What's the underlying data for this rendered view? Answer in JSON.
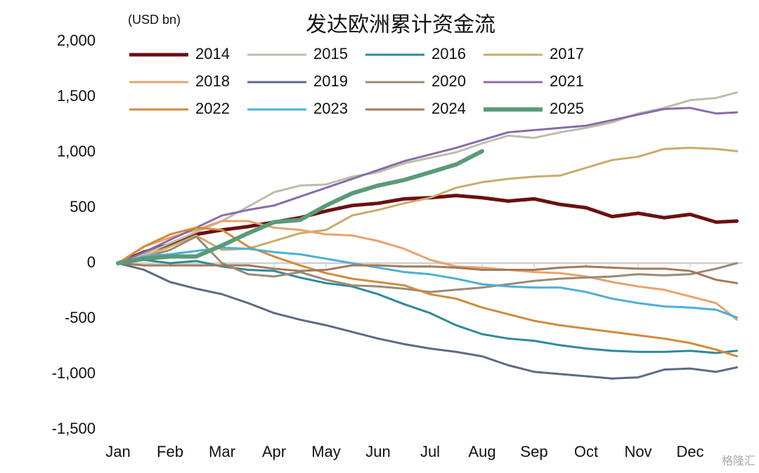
{
  "chart_data": {
    "type": "line",
    "title": "发达欧洲累计资金流",
    "unit_label": "(USD bn)",
    "watermark": "格隆汇",
    "x": [
      0,
      0.5,
      1,
      1.5,
      2,
      2.5,
      3,
      3.5,
      4,
      4.5,
      5,
      5.5,
      6,
      6.5,
      7,
      7.5,
      8,
      8.5,
      9,
      9.5,
      10,
      10.5,
      11,
      11.5,
      11.9
    ],
    "xlim": [
      0,
      12
    ],
    "xticks": [
      {
        "value": 0,
        "label": "Jan"
      },
      {
        "value": 1,
        "label": "Feb"
      },
      {
        "value": 2,
        "label": "Mar"
      },
      {
        "value": 3,
        "label": "Apr"
      },
      {
        "value": 4,
        "label": "May"
      },
      {
        "value": 5,
        "label": "Jun"
      },
      {
        "value": 6,
        "label": "Jul"
      },
      {
        "value": 7,
        "label": "Aug"
      },
      {
        "value": 8,
        "label": "Sep"
      },
      {
        "value": 9,
        "label": "Oct"
      },
      {
        "value": 10,
        "label": "Nov"
      },
      {
        "value": 11,
        "label": "Dec"
      }
    ],
    "ylim": [
      -1500,
      2000
    ],
    "yticks": [
      {
        "value": 2000,
        "label": "2,000"
      },
      {
        "value": 1500,
        "label": "1,500"
      },
      {
        "value": 1000,
        "label": "1,000"
      },
      500,
      0,
      -500,
      {
        "value": -1000,
        "label": "-1,000"
      },
      {
        "value": -1500,
        "label": "-1,500"
      }
    ],
    "series": [
      {
        "name": "2014",
        "color": "#6b0f12",
        "line_width": 5,
        "values": [
          0,
          100,
          170,
          260,
          300,
          330,
          370,
          410,
          470,
          520,
          540,
          580,
          590,
          610,
          590,
          560,
          580,
          530,
          500,
          420,
          450,
          410,
          440,
          370,
          380
        ]
      },
      {
        "name": "2015",
        "color": "#bdbdac",
        "line_width": 3,
        "values": [
          0,
          80,
          180,
          280,
          380,
          510,
          640,
          700,
          710,
          780,
          820,
          900,
          950,
          1000,
          1080,
          1150,
          1130,
          1180,
          1220,
          1270,
          1350,
          1400,
          1470,
          1490,
          1540
        ]
      },
      {
        "name": "2016",
        "color": "#2e8a98",
        "line_width": 3,
        "values": [
          0,
          30,
          0,
          20,
          -30,
          -60,
          -70,
          -130,
          -180,
          -210,
          -280,
          -370,
          -450,
          -560,
          -640,
          -680,
          -700,
          -740,
          -770,
          -790,
          -800,
          -800,
          -790,
          -810,
          -790
        ]
      },
      {
        "name": "2017",
        "color": "#c9ab6c",
        "line_width": 3,
        "values": [
          0,
          60,
          150,
          250,
          120,
          130,
          200,
          270,
          300,
          430,
          480,
          540,
          590,
          680,
          730,
          760,
          780,
          790,
          860,
          930,
          960,
          1030,
          1040,
          1030,
          1010
        ]
      },
      {
        "name": "2018",
        "color": "#e9a26c",
        "line_width": 3,
        "values": [
          0,
          150,
          230,
          300,
          380,
          380,
          320,
          300,
          260,
          250,
          200,
          130,
          30,
          -30,
          -40,
          -60,
          -80,
          -90,
          -120,
          -170,
          -210,
          -240,
          -300,
          -360,
          -510
        ]
      },
      {
        "name": "2019",
        "color": "#5b6b86",
        "line_width": 3,
        "values": [
          0,
          -60,
          -170,
          -230,
          -280,
          -360,
          -450,
          -510,
          -560,
          -620,
          -680,
          -730,
          -770,
          -800,
          -840,
          -920,
          -980,
          -1000,
          -1020,
          -1040,
          -1030,
          -960,
          -950,
          -980,
          -940
        ]
      },
      {
        "name": "2020",
        "color": "#9a8b73",
        "line_width": 3,
        "values": [
          0,
          50,
          120,
          240,
          0,
          -100,
          -120,
          -80,
          -150,
          -200,
          -210,
          -230,
          -260,
          -240,
          -220,
          -190,
          -160,
          -140,
          -130,
          -120,
          -100,
          -110,
          -100,
          -50,
          0
        ]
      },
      {
        "name": "2021",
        "color": "#8a6ba8",
        "line_width": 3,
        "values": [
          0,
          100,
          210,
          320,
          430,
          480,
          520,
          600,
          680,
          760,
          840,
          920,
          980,
          1040,
          1110,
          1180,
          1200,
          1220,
          1240,
          1290,
          1340,
          1390,
          1400,
          1350,
          1360
        ]
      },
      {
        "name": "2022",
        "color": "#d08b3b",
        "line_width": 3,
        "values": [
          0,
          150,
          260,
          320,
          300,
          150,
          60,
          -20,
          -90,
          -140,
          -170,
          -200,
          -280,
          -320,
          -400,
          -460,
          -520,
          -560,
          -590,
          -620,
          -650,
          -680,
          -720,
          -780,
          -840
        ]
      },
      {
        "name": "2023",
        "color": "#4bb0d8",
        "line_width": 3,
        "values": [
          0,
          60,
          80,
          110,
          140,
          130,
          100,
          80,
          40,
          0,
          -40,
          -80,
          -100,
          -140,
          -190,
          -210,
          -220,
          -220,
          -260,
          -320,
          -360,
          -390,
          -400,
          -420,
          -490
        ]
      },
      {
        "name": "2024",
        "color": "#a57959",
        "line_width": 3,
        "values": [
          0,
          -20,
          -20,
          -20,
          -20,
          -20,
          -50,
          -70,
          -60,
          -20,
          -20,
          -30,
          -30,
          -40,
          -60,
          -60,
          -60,
          -40,
          -30,
          -40,
          -50,
          -50,
          -70,
          -150,
          -180
        ]
      },
      {
        "name": "2025",
        "color": "#5a9a78",
        "line_width": 6,
        "values": [
          0,
          40,
          60,
          60,
          160,
          270,
          370,
          390,
          520,
          630,
          700,
          750,
          820,
          890,
          1010,
          null,
          null,
          null,
          null,
          null,
          null,
          null,
          null,
          null,
          null
        ]
      }
    ]
  }
}
